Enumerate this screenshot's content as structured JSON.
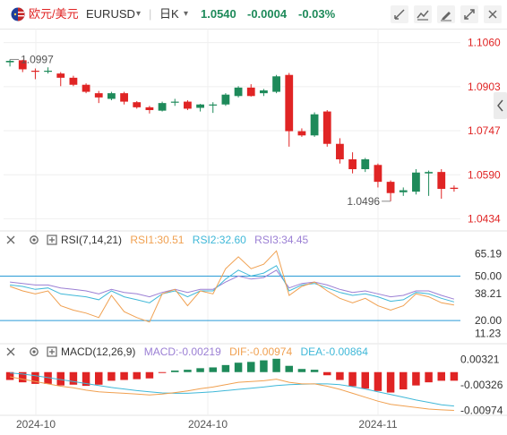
{
  "header": {
    "pair_name": "欧元/美元",
    "symbol": "EURUSD",
    "symbol_caret": "▾",
    "timeframe": "日K",
    "timeframe_caret": "▾",
    "price": "1.0540",
    "change": "-0.0004",
    "change_pct": "-0.03%",
    "icons": [
      "drawing-tool-icon",
      "indicator-icon",
      "pen-icon",
      "fullscreen-icon",
      "close-icon"
    ]
  },
  "colors": {
    "up": "#1e8a5a",
    "down": "#e02424",
    "ref_line": "#2a9bd6",
    "rsi1": "#f0a050",
    "rsi2": "#3fb8d8",
    "rsi3": "#9b7fd4",
    "dif": "#f0a050",
    "dea": "#3fb8d8",
    "price_axis": "#e02424",
    "grid": "#efefef"
  },
  "main_chart": {
    "ylim": [
      1.04,
      1.11
    ],
    "axis_ticks": [
      "1.1060",
      "1.0903",
      "1.0747",
      "1.0590",
      "1.0434"
    ],
    "high_label": "1.0997",
    "low_label": "1.0496"
  },
  "rsi": {
    "title": "RSI(7,14,21)",
    "rsi1_label": "RSI1:30.51",
    "rsi2_label": "RSI2:32.60",
    "rsi3_label": "RSI3:34.45",
    "ylim": [
      8,
      72
    ],
    "axis_ticks": [
      "65.19",
      "50.00",
      "38.21",
      "20.00",
      "11.23"
    ],
    "levels": [
      50,
      20
    ]
  },
  "macd": {
    "title": "MACD(12,26,9)",
    "macd_label": "MACD:-0.00219",
    "dif_label": "DIF:-0.00974",
    "dea_label": "DEA:-0.00864",
    "ylim": [
      -0.011,
      0.0045
    ],
    "axis_ticks": [
      "0.00321",
      "-0.00326",
      "-0.00974"
    ]
  },
  "xaxis": {
    "labels": [
      "2024-10",
      "2024-10",
      "2024-11"
    ]
  },
  "chart_data": {
    "type": "candlestick",
    "candles": [
      {
        "o": 1.099,
        "h": 1.1,
        "l": 1.0975,
        "c": 1.0995
      },
      {
        "o": 1.0997,
        "h": 1.0999,
        "l": 1.0955,
        "c": 1.0965
      },
      {
        "o": 1.096,
        "h": 1.0968,
        "l": 1.093,
        "c": 1.0958
      },
      {
        "o": 1.0958,
        "h": 1.0972,
        "l": 1.095,
        "c": 1.096
      },
      {
        "o": 1.095,
        "h": 1.0955,
        "l": 1.0905,
        "c": 1.0935
      },
      {
        "o": 1.0935,
        "h": 1.0942,
        "l": 1.0905,
        "c": 1.091
      },
      {
        "o": 1.091,
        "h": 1.0915,
        "l": 1.088,
        "c": 1.0885
      },
      {
        "o": 1.088,
        "h": 1.0888,
        "l": 1.0845,
        "c": 1.0865
      },
      {
        "o": 1.086,
        "h": 1.0885,
        "l": 1.0855,
        "c": 1.088
      },
      {
        "o": 1.088,
        "h": 1.0885,
        "l": 1.084,
        "c": 1.085
      },
      {
        "o": 1.0848,
        "h": 1.0852,
        "l": 1.0825,
        "c": 1.083
      },
      {
        "o": 1.083,
        "h": 1.0835,
        "l": 1.0808,
        "c": 1.082
      },
      {
        "o": 1.0818,
        "h": 1.085,
        "l": 1.0815,
        "c": 1.0845
      },
      {
        "o": 1.0847,
        "h": 1.086,
        "l": 1.0835,
        "c": 1.085
      },
      {
        "o": 1.085,
        "h": 1.0855,
        "l": 1.082,
        "c": 1.0825
      },
      {
        "o": 1.0828,
        "h": 1.0842,
        "l": 1.0815,
        "c": 1.084
      },
      {
        "o": 1.084,
        "h": 1.0848,
        "l": 1.081,
        "c": 1.084
      },
      {
        "o": 1.084,
        "h": 1.088,
        "l": 1.0835,
        "c": 1.0875
      },
      {
        "o": 1.087,
        "h": 1.0905,
        "l": 1.0865,
        "c": 1.09
      },
      {
        "o": 1.09,
        "h": 1.0912,
        "l": 1.0868,
        "c": 1.087
      },
      {
        "o": 1.088,
        "h": 1.0895,
        "l": 1.087,
        "c": 1.089
      },
      {
        "o": 1.0885,
        "h": 1.0945,
        "l": 1.088,
        "c": 1.094
      },
      {
        "o": 1.0945,
        "h": 1.0952,
        "l": 1.069,
        "c": 1.0745
      },
      {
        "o": 1.0745,
        "h": 1.0755,
        "l": 1.0725,
        "c": 1.073
      },
      {
        "o": 1.073,
        "h": 1.0812,
        "l": 1.0725,
        "c": 1.0805
      },
      {
        "o": 1.0815,
        "h": 1.082,
        "l": 1.069,
        "c": 1.07
      },
      {
        "o": 1.07,
        "h": 1.072,
        "l": 1.063,
        "c": 1.0645
      },
      {
        "o": 1.0645,
        "h": 1.067,
        "l": 1.0595,
        "c": 1.061
      },
      {
        "o": 1.061,
        "h": 1.065,
        "l": 1.06,
        "c": 1.0645
      },
      {
        "o": 1.0625,
        "h": 1.063,
        "l": 1.0545,
        "c": 1.0565
      },
      {
        "o": 1.0565,
        "h": 1.057,
        "l": 1.0496,
        "c": 1.0525
      },
      {
        "o": 1.0528,
        "h": 1.0545,
        "l": 1.0515,
        "c": 1.0535
      },
      {
        "o": 1.053,
        "h": 1.061,
        "l": 1.052,
        "c": 1.0598
      },
      {
        "o": 1.0595,
        "h": 1.0605,
        "l": 1.0515,
        "c": 1.06
      },
      {
        "o": 1.06,
        "h": 1.061,
        "l": 1.0505,
        "c": 1.054
      },
      {
        "o": 1.0544,
        "h": 1.0552,
        "l": 1.053,
        "c": 1.054
      }
    ],
    "rsi": {
      "rsi1": [
        43,
        40,
        38,
        40,
        30,
        27,
        25,
        22,
        37,
        26,
        22,
        19,
        38,
        41,
        30,
        40,
        38,
        55,
        63,
        55,
        58,
        67,
        37,
        43,
        46,
        40,
        35,
        32,
        35,
        30,
        27,
        30,
        38,
        36,
        32,
        30.51
      ],
      "rsi2": [
        44,
        43,
        41,
        42,
        38,
        37,
        36,
        34,
        40,
        36,
        34,
        32,
        38,
        40,
        36,
        40,
        40,
        48,
        54,
        50,
        52,
        57,
        40,
        44,
        45,
        42,
        39,
        37,
        38,
        36,
        33,
        34,
        39,
        38,
        35,
        32.6
      ],
      "rsi3": [
        46,
        45,
        44,
        44,
        42,
        41,
        40,
        38,
        41,
        39,
        38,
        36,
        39,
        41,
        39,
        41,
        41,
        46,
        50,
        48,
        49,
        54,
        42,
        45,
        46,
        44,
        41,
        39,
        40,
        38,
        36,
        37,
        40,
        40,
        37,
        34.45
      ]
    },
    "macd_series": {
      "hist": [
        -0.002,
        -0.0026,
        -0.003,
        -0.003,
        -0.0034,
        -0.0032,
        -0.0035,
        -0.0032,
        -0.0022,
        -0.002,
        -0.0018,
        -0.0016,
        -0.0002,
        0.0004,
        0.0006,
        0.001,
        0.0012,
        0.0018,
        0.0024,
        0.0026,
        0.003,
        0.0034,
        0.0016,
        0.0008,
        0.0006,
        -0.0008,
        -0.002,
        -0.0036,
        -0.0042,
        -0.0048,
        -0.0052,
        -0.0044,
        -0.0034,
        -0.0026,
        -0.0022,
        -0.00219
      ],
      "dif": [
        -0.0012,
        -0.0018,
        -0.0024,
        -0.003,
        -0.0036,
        -0.004,
        -0.0046,
        -0.005,
        -0.0052,
        -0.0054,
        -0.0056,
        -0.0058,
        -0.0056,
        -0.0052,
        -0.0048,
        -0.0042,
        -0.0038,
        -0.0032,
        -0.0026,
        -0.0024,
        -0.0022,
        -0.0018,
        -0.0026,
        -0.003,
        -0.003,
        -0.0036,
        -0.0044,
        -0.0054,
        -0.0064,
        -0.0074,
        -0.0082,
        -0.0086,
        -0.009,
        -0.0094,
        -0.0096,
        -0.00974
      ],
      "dea": [
        -0.0002,
        -0.0005,
        -0.0009,
        -0.0014,
        -0.0019,
        -0.0024,
        -0.0029,
        -0.0034,
        -0.0039,
        -0.0043,
        -0.0047,
        -0.005,
        -0.0053,
        -0.0054,
        -0.0054,
        -0.0052,
        -0.005,
        -0.0047,
        -0.0044,
        -0.0041,
        -0.0038,
        -0.0034,
        -0.0032,
        -0.0031,
        -0.003,
        -0.003,
        -0.0032,
        -0.0037,
        -0.0043,
        -0.005,
        -0.0057,
        -0.0064,
        -0.0071,
        -0.0077,
        -0.0083,
        -0.00864
      ]
    }
  }
}
